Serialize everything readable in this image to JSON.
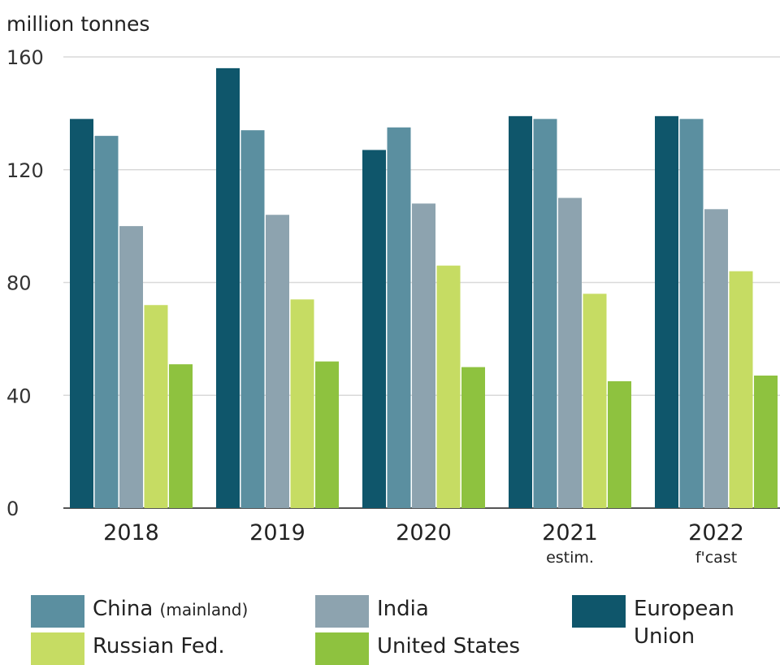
{
  "chart_data": {
    "type": "bar",
    "ylabel": "million tonnes",
    "ylim": [
      0,
      160
    ],
    "yticks": [
      0,
      40,
      80,
      120,
      160
    ],
    "grid": true,
    "categories": [
      "2018",
      "2019",
      "2020",
      "2021",
      "2022"
    ],
    "category_sublabels": [
      "",
      "",
      "",
      "estim.",
      "f'cast"
    ],
    "series": [
      {
        "name": "European Union",
        "color": "#0f566b",
        "values": [
          138,
          156,
          127,
          139,
          139
        ]
      },
      {
        "name": "China",
        "name_suffix": "(mainland)",
        "color": "#5b8fa0",
        "values": [
          132,
          134,
          135,
          138,
          138
        ]
      },
      {
        "name": "India",
        "color": "#8da3af",
        "values": [
          100,
          104,
          108,
          110,
          106
        ]
      },
      {
        "name": "Russian Fed.",
        "color": "#c6dc63",
        "values": [
          72,
          74,
          86,
          76,
          84
        ]
      },
      {
        "name": "United States",
        "color": "#8ec23f",
        "values": [
          51,
          52,
          50,
          45,
          47
        ]
      }
    ],
    "legend_placement": "bottom"
  }
}
